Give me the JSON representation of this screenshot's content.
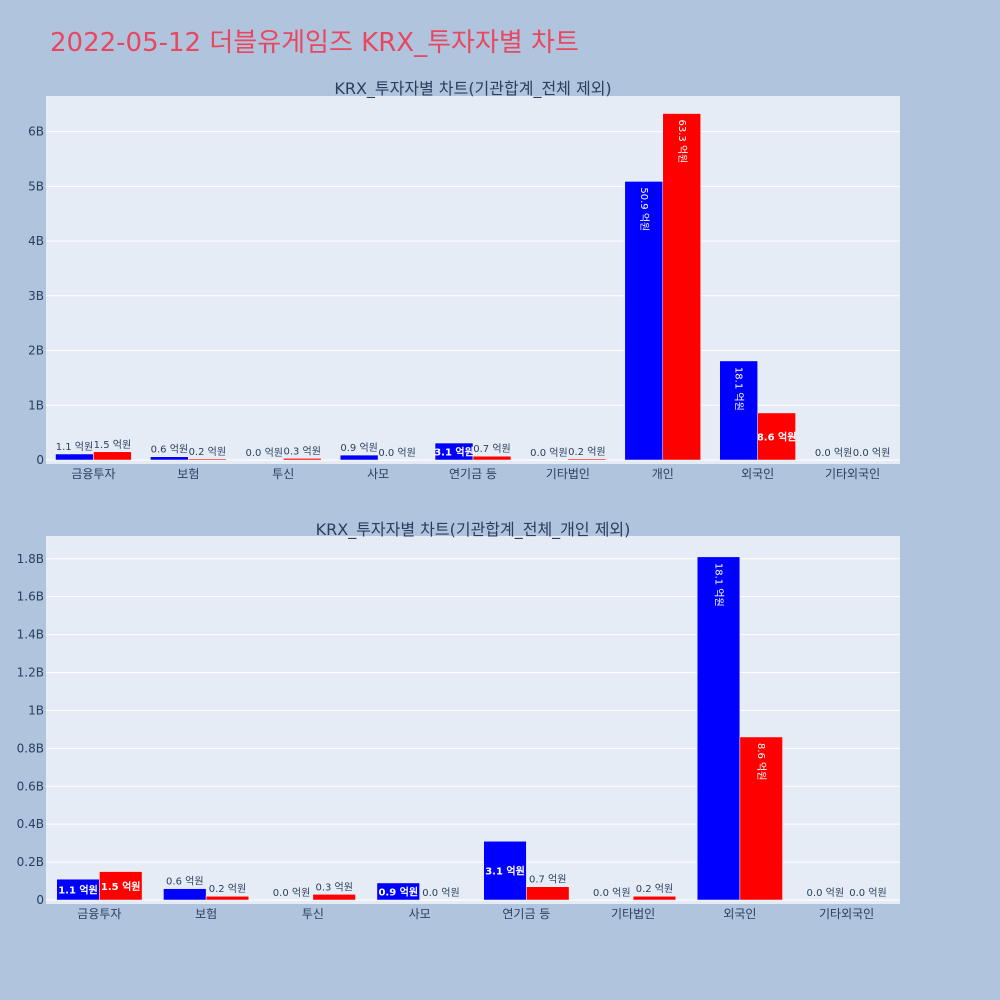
{
  "page": {
    "title": "2022-05-12 더블유게임즈 KRX_투자자별 차트"
  },
  "chart_data": [
    {
      "type": "bar",
      "title": "KRX_투자자별 차트(기관합계_전체 제외)",
      "categories": [
        "금융투자",
        "보험",
        "투신",
        "사모",
        "연기금 등",
        "기타법인",
        "개인",
        "외국인",
        "기타외국인"
      ],
      "series": [
        {
          "color": "#0000ff",
          "values": [
            110000000,
            60000000,
            0,
            90000000,
            310000000,
            0,
            5090000000,
            1810000000,
            0
          ],
          "labels": [
            "1.1 억원",
            "0.6 억원",
            "0.0 억원",
            "0.9 억원",
            "3.1 억원",
            "0.0 억원",
            "50.9 억원",
            "18.1 억원",
            "0.0 억원"
          ]
        },
        {
          "color": "#ff0000",
          "values": [
            150000000,
            20000000,
            30000000,
            0,
            70000000,
            20000000,
            6330000000,
            860000000,
            0
          ],
          "labels": [
            "1.5 억원",
            "0.2 억원",
            "0.3 억원",
            "0.0 억원",
            "0.7 억원",
            "0.2 억원",
            "63.3 억원",
            "8.6 억원",
            "0.0 억원"
          ]
        }
      ],
      "ylim": [
        0,
        6650000000
      ],
      "yticks": [
        0,
        1000000000,
        2000000000,
        3000000000,
        4000000000,
        5000000000,
        6000000000
      ],
      "ytick_labels": [
        "0",
        "1B",
        "2B",
        "3B",
        "4B",
        "5B",
        "6B"
      ],
      "grid": true,
      "bg_color": "#e5ecf6"
    },
    {
      "type": "bar",
      "title": "KRX_투자자별 차트(기관합계_전체_개인 제외)",
      "categories": [
        "금융투자",
        "보험",
        "투신",
        "사모",
        "연기금 등",
        "기타법인",
        "외국인",
        "기타외국인"
      ],
      "series": [
        {
          "color": "#0000ff",
          "values": [
            110000000,
            60000000,
            0,
            90000000,
            310000000,
            0,
            1810000000,
            0
          ],
          "labels": [
            "1.1 억원",
            "0.6 억원",
            "0.0 억원",
            "0.9 억원",
            "3.1 억원",
            "0.0 억원",
            "18.1 억원",
            "0.0 억원"
          ]
        },
        {
          "color": "#ff0000",
          "values": [
            150000000,
            20000000,
            30000000,
            0,
            70000000,
            20000000,
            860000000,
            0
          ],
          "labels": [
            "1.5 억원",
            "0.2 억원",
            "0.3 억원",
            "0.0 억원",
            "0.7 억원",
            "0.2 억원",
            "8.6 억원",
            "0.0 억원"
          ]
        }
      ],
      "ylim": [
        0,
        1920000000
      ],
      "yticks": [
        0,
        200000000,
        400000000,
        600000000,
        800000000,
        1000000000,
        1200000000,
        1400000000,
        1600000000,
        1800000000
      ],
      "ytick_labels": [
        "0",
        "0.2B",
        "0.4B",
        "0.6B",
        "0.8B",
        "1B",
        "1.2B",
        "1.4B",
        "1.6B",
        "1.8B"
      ],
      "grid": true,
      "bg_color": "#e5ecf6"
    }
  ]
}
